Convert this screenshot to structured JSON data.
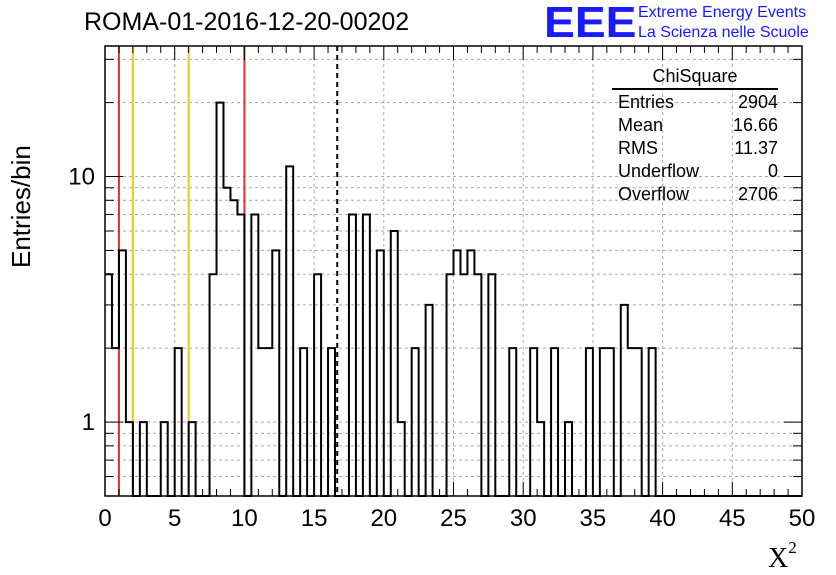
{
  "header": {
    "title": "ROMA-01-2016-12-20-00202"
  },
  "logo": {
    "mark": "EEE",
    "line1": "Extreme Energy Events",
    "line2": "La Scienza nelle Scuole",
    "color": "#1a1aff"
  },
  "stats": {
    "title": "ChiSquare",
    "rows": [
      {
        "label": "Entries",
        "value": "2904"
      },
      {
        "label": "Mean",
        "value": "16.66"
      },
      {
        "label": "RMS",
        "value": "11.37"
      },
      {
        "label": "Underflow",
        "value": "0"
      },
      {
        "label": "Overflow",
        "value": "2706"
      }
    ]
  },
  "chart_data": {
    "type": "bar",
    "style": "step-histogram",
    "title": "ROMA-01-2016-12-20-00202",
    "xlabel": "X",
    "xlabel_superscript": "2",
    "ylabel": "Entries/bin",
    "xlim": [
      0,
      50
    ],
    "ylim": [
      0.5,
      34
    ],
    "yscale": "log",
    "grid": true,
    "bin_width": 0.5,
    "x_ticks": [
      "0",
      "5",
      "10",
      "15",
      "20",
      "25",
      "30",
      "35",
      "40",
      "45",
      "50"
    ],
    "y_ticks": [
      "1",
      "10"
    ],
    "values": [
      4,
      2,
      5,
      1,
      0,
      1,
      0,
      0,
      1,
      0,
      2,
      0,
      1,
      0,
      0,
      4,
      20,
      9,
      8,
      7,
      0,
      7,
      2,
      2,
      5,
      0,
      11,
      0,
      2,
      0,
      4,
      0,
      2,
      0,
      0,
      7,
      0,
      7,
      0,
      5,
      0,
      6,
      1,
      0,
      2,
      0,
      3,
      0,
      0,
      4,
      5,
      4,
      5,
      4,
      0,
      4,
      0,
      0,
      2,
      0,
      0,
      2,
      1,
      0,
      2,
      0,
      1,
      0,
      0,
      2,
      0,
      2,
      2,
      0,
      3,
      2,
      2,
      0,
      2,
      0,
      0,
      0,
      0,
      0,
      0,
      0,
      0,
      0,
      0,
      0,
      0,
      0,
      0,
      0,
      0,
      0,
      0,
      0,
      0,
      0
    ],
    "reference_lines": [
      {
        "x": 1,
        "color": "#e8302a",
        "style": "solid"
      },
      {
        "x": 2,
        "color": "#f5c518",
        "style": "solid"
      },
      {
        "x": 6,
        "color": "#f5c518",
        "style": "solid"
      },
      {
        "x": 10,
        "color": "#e8302a",
        "style": "solid"
      },
      {
        "x": 16.66,
        "color": "#000000",
        "style": "dashed"
      }
    ],
    "line_color": "#000000"
  }
}
